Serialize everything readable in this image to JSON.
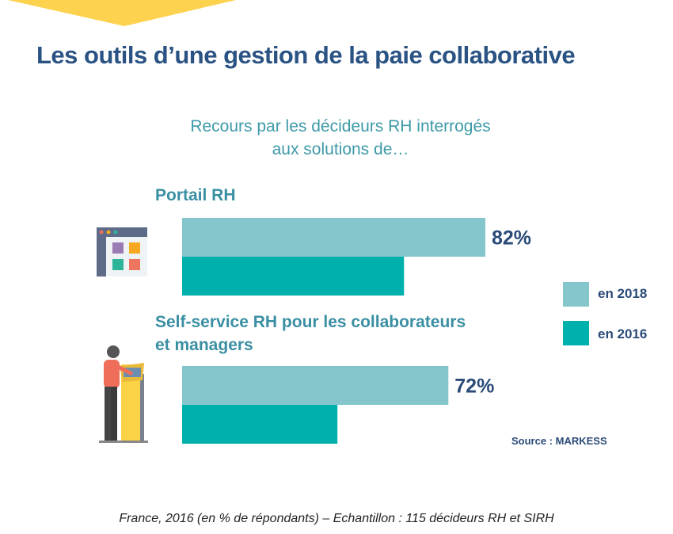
{
  "title": "Les outils d’une gestion de la paie collaborative",
  "subtitle_lines": [
    "Recours par les décideurs RH interrogés",
    "aux solutions de…"
  ],
  "colors": {
    "title": "#2a5384",
    "series_2018": "#84c6cc",
    "series_2016": "#00b0ad",
    "accent_yellow": "#fdd24e"
  },
  "chart_data": {
    "type": "bar",
    "orientation": "horizontal",
    "categories": [
      "Portail RH",
      "Self-service RH pour les collaborateurs et managers"
    ],
    "category_label_lines": [
      [
        "Portail RH"
      ],
      [
        "Self-service RH pour les collaborateurs",
        "et managers"
      ]
    ],
    "series": [
      {
        "name": "en 2018",
        "values": [
          82,
          72
        ],
        "labels": [
          "82%",
          "72%"
        ],
        "color": "#84c6cc"
      },
      {
        "name": "en 2016",
        "values": [
          60,
          42
        ],
        "color": "#00b0ad"
      }
    ],
    "xlim": [
      0,
      100
    ],
    "grid": false,
    "legend_position": "right"
  },
  "icons": [
    "web-portal-icon",
    "self-service-kiosk-icon"
  ],
  "source": "Source : MARKESS",
  "footnote": "France, 2016 (en % de répondants) – Echantillon : 115 décideurs RH et SIRH"
}
